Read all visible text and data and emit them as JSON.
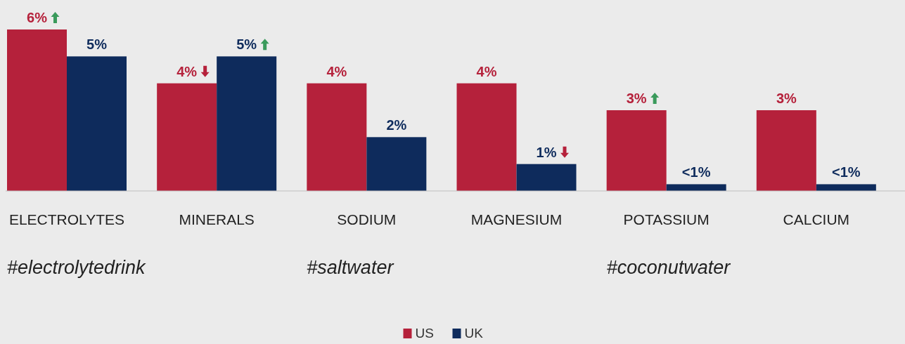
{
  "chart_data": {
    "type": "bar",
    "categories": [
      "ELECTROLYTES",
      "MINERALS",
      "SODIUM",
      "MAGNESIUM",
      "POTASSIUM",
      "CALCIUM"
    ],
    "series": [
      {
        "name": "US",
        "color": "#b5213b",
        "values": [
          6,
          4,
          4,
          4,
          3,
          3
        ],
        "value_labels": [
          "6%",
          "4%",
          "4%",
          "4%",
          "3%",
          "3%"
        ]
      },
      {
        "name": "UK",
        "color": "#0e2b5c",
        "values": [
          5,
          5,
          2,
          1,
          0.25,
          0.25
        ],
        "value_labels": [
          "5%",
          "5%",
          "2%",
          "1%",
          "<1%",
          "<1%"
        ]
      }
    ],
    "annotations": [
      "#electrolytedrink",
      "#saltwater",
      "#coconutwater"
    ],
    "legend": "bottom",
    "grid": false
  }
}
